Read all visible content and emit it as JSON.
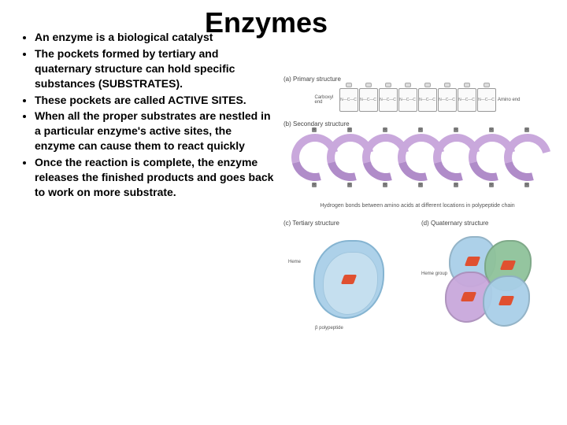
{
  "title": "Enzymes",
  "bullets": [
    "An enzyme is a biological catalyst",
    "The pockets formed by tertiary and quaternary structure can hold specific substances (SUBSTRATES).",
    "These pockets are called ACTIVE SITES.",
    "When all the proper substrates are nestled in a particular enzyme's active sites, the enzyme can cause them to react quickly",
    "Once the reaction is complete, the enzyme releases the finished products and goes back to work on more substrate."
  ],
  "figure": {
    "primary": {
      "label": "(a) Primary structure",
      "left_end": "Carboxyl end",
      "right_end": "Amino end",
      "residue_count": 8
    },
    "secondary": {
      "label": "(b) Secondary structure",
      "caption": "Hydrogen bonds between amino acids at different locations in polypeptide chain",
      "helix_color": "#c9a8dc",
      "helix_shadow": "#b08cc9",
      "loops": [
        0,
        45,
        90,
        135,
        180,
        225,
        270
      ]
    },
    "tertiary": {
      "label": "(c) Tertiary structure",
      "heme_label": "Heme",
      "chain_label": "β polypeptide",
      "blob_color": "#a9cfe8"
    },
    "quaternary": {
      "label": "(d) Quaternary structure",
      "heme_group_label": "Heme group",
      "colors": [
        "#a9cfe8",
        "#8fc29a",
        "#c9a8dc",
        "#a9cfe8"
      ]
    }
  },
  "colors": {
    "text": "#000000",
    "bg": "#ffffff"
  }
}
